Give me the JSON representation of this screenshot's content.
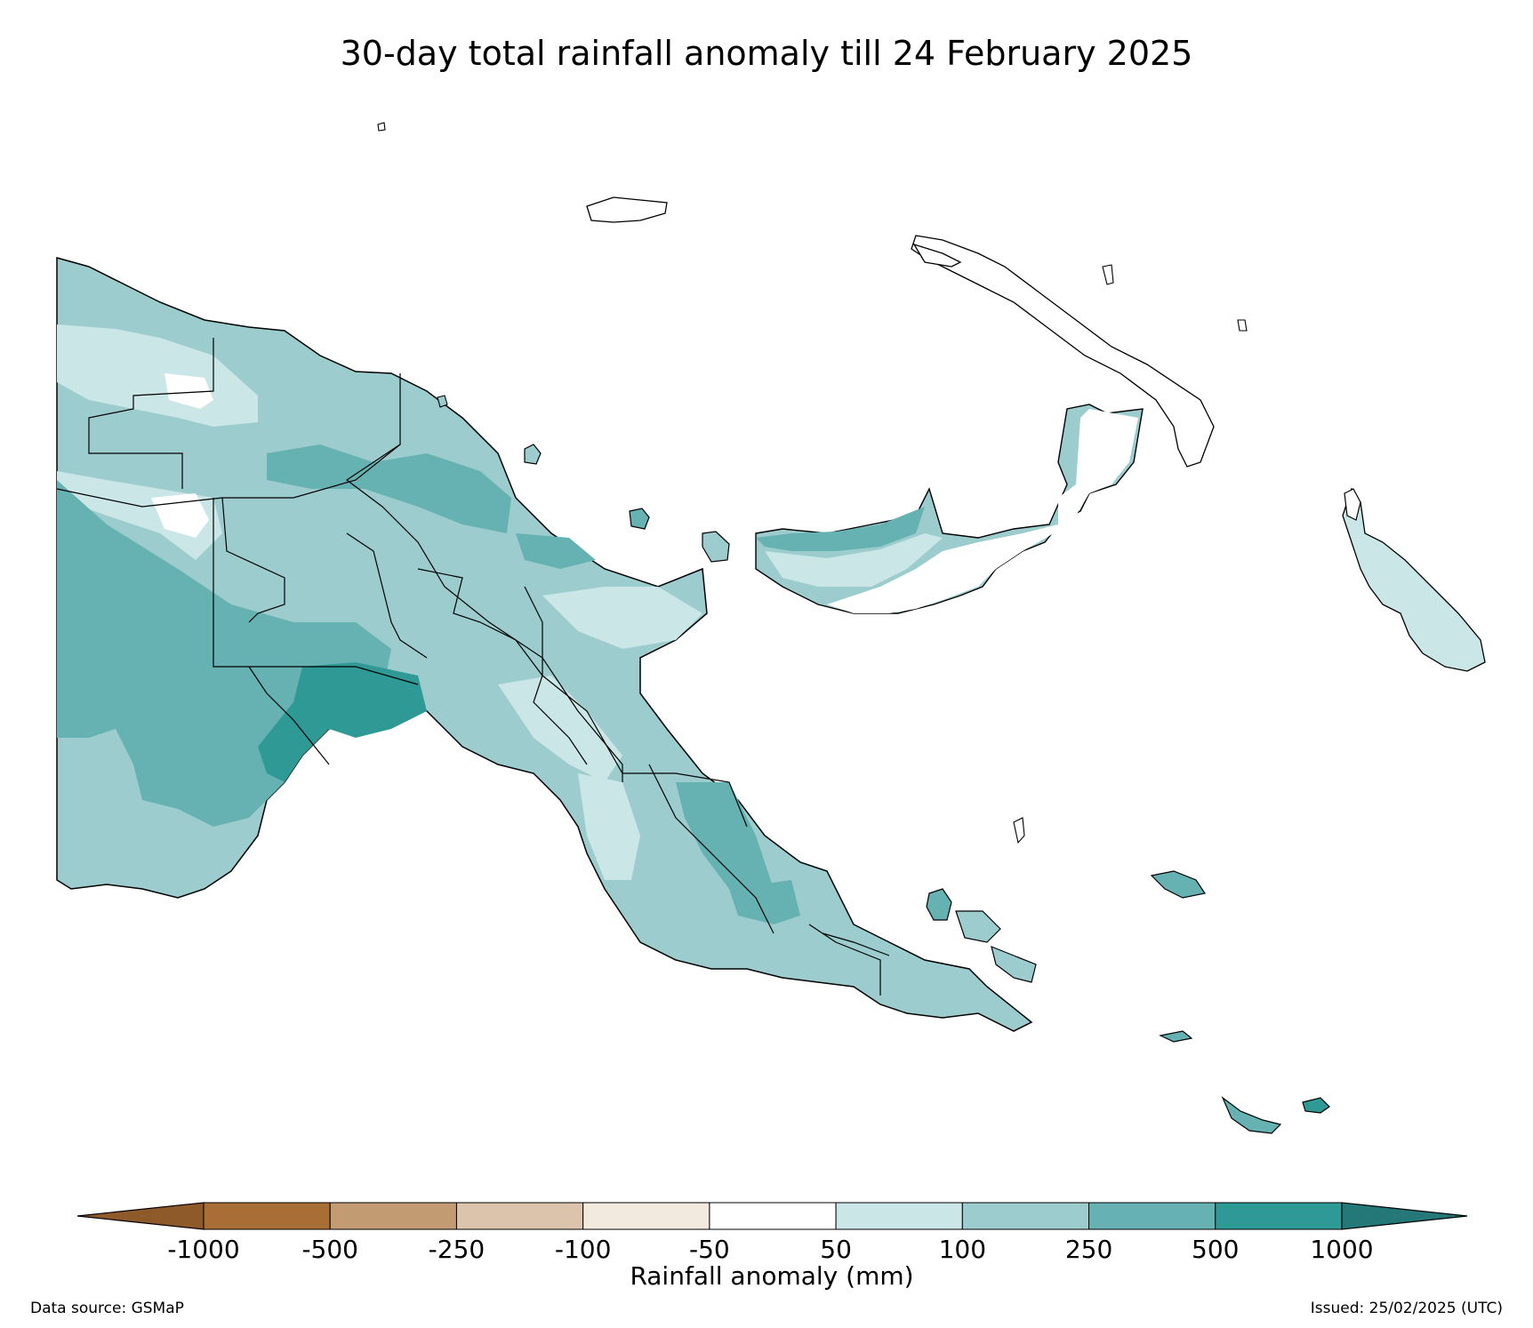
{
  "title": "30-day total rainfall anomaly till 24 February 2025",
  "colorbar": {
    "label": "Rainfall anomaly (mm)",
    "ticks": [
      "-1000",
      "-500",
      "-250",
      "-100",
      "-50",
      "50",
      "100",
      "250",
      "500",
      "1000"
    ],
    "colors": [
      "#a86e35",
      "#c39b73",
      "#dcc4ac",
      "#f2e9df",
      "#ffffff",
      "#cbe6e6",
      "#9ccccd",
      "#66b2b3",
      "#2f9996"
    ],
    "under_color": "#8e5a2a",
    "over_color": "#247878"
  },
  "footer": {
    "data_source": "Data source: GSMaP",
    "issued": "Issued: 25/02/2025 (UTC)"
  }
}
